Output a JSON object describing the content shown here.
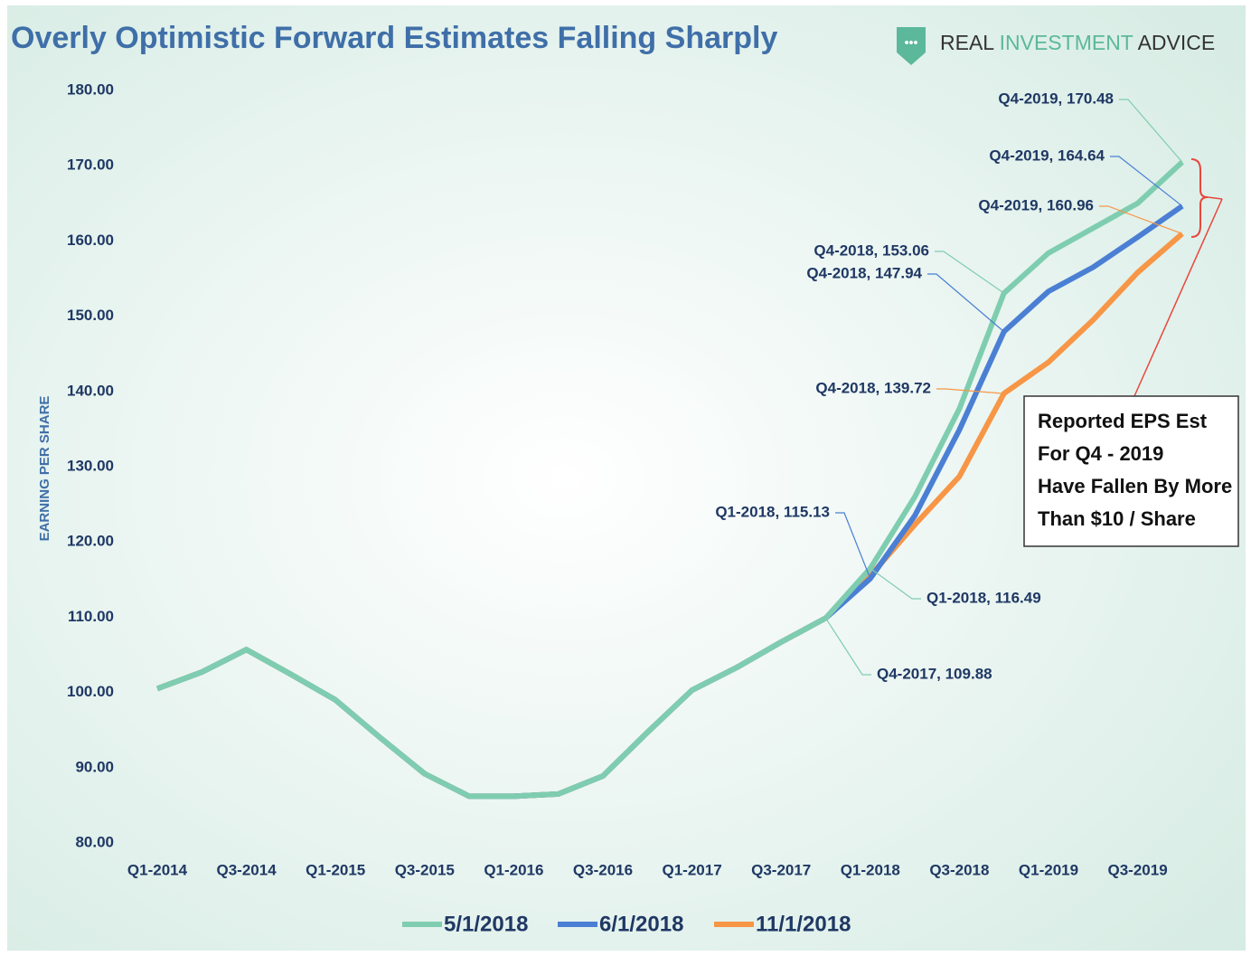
{
  "chart_data": {
    "type": "line",
    "title": "Overly Optimistic Forward Estimates Falling Sharply",
    "logo": [
      "REAL",
      "INVESTMENT",
      "ADVICE"
    ],
    "ylabel": "EARNING PER SHARE",
    "note": [
      "Reported EPS Est",
      "For Q4 - 2019",
      "Have Fallen By More",
      "Than $10 / Share"
    ],
    "categories": [
      "Q1-2014",
      null,
      "Q3-2014",
      null,
      "Q1-2015",
      null,
      "Q3-2015",
      null,
      "Q1-2016",
      null,
      "Q3-2016",
      null,
      "Q1-2017",
      null,
      "Q3-2017",
      null,
      "Q1-2018",
      null,
      "Q3-2018",
      null,
      "Q1-2019",
      null,
      "Q3-2019",
      null
    ],
    "series": [
      {
        "name": "5/1/2018",
        "color": "#7fcdb0",
        "values": [
          100.5,
          102.7,
          105.7,
          102.4,
          99.0,
          94.0,
          89.2,
          86.2,
          86.2,
          86.5,
          88.9,
          94.7,
          100.3,
          103.3,
          106.7,
          109.88,
          116.49,
          126.0,
          137.7,
          153.06,
          158.4,
          161.7,
          165.0,
          170.48
        ],
        "value_labels": [
          null,
          null,
          null,
          null,
          null,
          null,
          null,
          null,
          null,
          null,
          null,
          null,
          null,
          null,
          null,
          "Q4-2017, 109.88",
          "Q1-2018, 116.49",
          null,
          null,
          "Q4-2018, 153.06",
          null,
          null,
          null,
          "Q4-2019, 170.48"
        ]
      },
      {
        "name": "6/1/2018",
        "color": "#4a7fd4",
        "values": [
          100.5,
          102.7,
          105.7,
          102.4,
          99.0,
          94.0,
          89.2,
          86.2,
          86.2,
          86.5,
          88.9,
          94.7,
          100.3,
          103.3,
          106.7,
          109.88,
          115.13,
          123.5,
          134.9,
          147.94,
          153.3,
          156.5,
          160.5,
          164.64
        ],
        "value_labels": [
          null,
          null,
          null,
          null,
          null,
          null,
          null,
          null,
          null,
          null,
          null,
          null,
          null,
          null,
          null,
          null,
          "Q1-2018, 115.13",
          null,
          null,
          "Q4-2018, 147.94",
          null,
          null,
          null,
          "Q4-2019, 164.64"
        ]
      },
      {
        "name": "11/1/2018",
        "color": "#f79646",
        "values": [
          100.5,
          102.7,
          105.7,
          102.4,
          99.0,
          94.0,
          89.2,
          86.2,
          86.2,
          86.5,
          88.9,
          94.7,
          100.3,
          103.3,
          106.7,
          109.88,
          115.5,
          122.3,
          128.7,
          139.72,
          143.9,
          149.5,
          155.8,
          160.96
        ],
        "value_labels": [
          null,
          null,
          null,
          null,
          null,
          null,
          null,
          null,
          null,
          null,
          null,
          null,
          null,
          null,
          null,
          null,
          null,
          null,
          null,
          "Q4-2018, 139.72",
          null,
          null,
          null,
          "Q4-2019, 160.96"
        ]
      }
    ],
    "ylim": [
      80,
      180
    ],
    "yticks": [
      {
        "value": 80,
        "label": "80.00"
      },
      {
        "value": 90,
        "label": "90.00"
      },
      {
        "value": 100,
        "label": "100.00"
      },
      {
        "value": 110,
        "label": "110.00"
      },
      {
        "value": 120,
        "label": "120.00"
      },
      {
        "value": 130,
        "label": "130.00"
      },
      {
        "value": 140,
        "label": "140.00"
      },
      {
        "value": 150,
        "label": "150.00"
      },
      {
        "value": 160,
        "label": "160.00"
      },
      {
        "value": 170,
        "label": "170.00"
      },
      {
        "value": 180,
        "label": "180.00"
      }
    ],
    "grid": false,
    "legend": "bottom"
  }
}
